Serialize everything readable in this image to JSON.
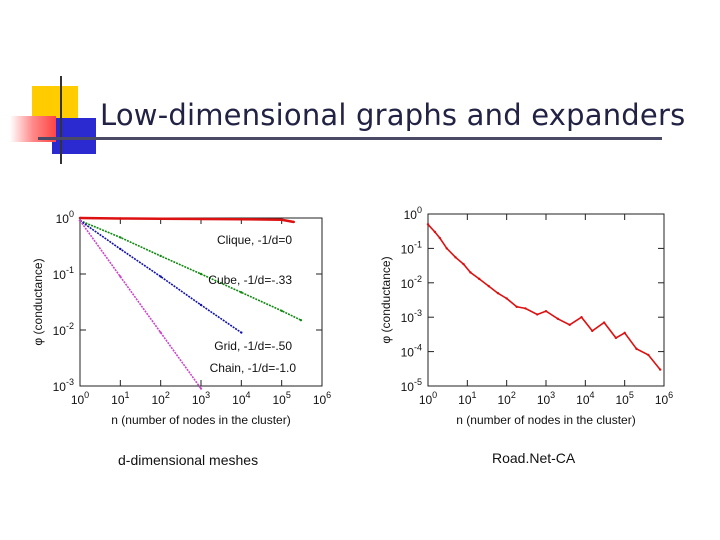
{
  "slide": {
    "title": "Low-dimensional graphs and expanders",
    "captions": {
      "left": "d-dimensional meshes",
      "right": "Road.Net-CA"
    }
  },
  "colors": {
    "accent_yellow": "#ffcc00",
    "accent_blue": "#2222cc",
    "accent_red": "#ff5555",
    "title_text": "#222244"
  },
  "chart_data": [
    {
      "type": "line",
      "xlabel": "n (number of nodes in the cluster)",
      "ylabel": "φ (conductance)",
      "xscale": "log",
      "yscale": "log",
      "xlim": [
        1,
        1000000
      ],
      "ylim": [
        0.001,
        1
      ],
      "x_ticks": [
        "10^0",
        "10^1",
        "10^2",
        "10^3",
        "10^4",
        "10^5",
        "10^6"
      ],
      "y_ticks": [
        "10^0",
        "10^-1",
        "10^-2",
        "10^-3"
      ],
      "series": [
        {
          "name": "Clique, -1/d=0",
          "color": "#dd1111",
          "x": [
            1,
            10,
            100,
            1000,
            10000,
            100000,
            200000
          ],
          "y": [
            1.0,
            0.98,
            0.97,
            0.96,
            0.95,
            0.93,
            0.85
          ]
        },
        {
          "name": "Cube, -1/d=-.33",
          "color": "#118811",
          "x": [
            1,
            10,
            100,
            1000,
            10000,
            100000,
            300000
          ],
          "y": [
            0.9,
            0.45,
            0.21,
            0.1,
            0.047,
            0.022,
            0.015
          ]
        },
        {
          "name": "Grid, -1/d=-.50",
          "color": "#1111aa",
          "x": [
            1,
            10,
            100,
            1000,
            10000
          ],
          "y": [
            0.9,
            0.28,
            0.09,
            0.028,
            0.009
          ]
        },
        {
          "name": "Chain, -1/d=-1.0",
          "color": "#cc44cc",
          "x": [
            1,
            10,
            100,
            1000
          ],
          "y": [
            0.9,
            0.09,
            0.009,
            0.0009
          ]
        }
      ],
      "legend_labels": [
        "Clique, -1/d=0",
        "Cube, -1/d=-.33",
        "Grid, -1/d=-.50",
        "Chain, -1/d=-1.0"
      ]
    },
    {
      "type": "line",
      "xlabel": "n (number of nodes in the cluster)",
      "ylabel": "φ (conductance)",
      "xscale": "log",
      "yscale": "log",
      "xlim": [
        1,
        1000000
      ],
      "ylim": [
        1e-05,
        1
      ],
      "x_ticks": [
        "10^0",
        "10^1",
        "10^2",
        "10^3",
        "10^4",
        "10^5",
        "10^6"
      ],
      "y_ticks": [
        "10^0",
        "10^-1",
        "10^-2",
        "10^-3",
        "10^-4",
        "10^-5"
      ],
      "series": [
        {
          "color": "#dd1111",
          "x": [
            1,
            1.5,
            2,
            3,
            5,
            8,
            12,
            20,
            35,
            60,
            100,
            180,
            300,
            600,
            1000,
            2000,
            4000,
            8000,
            15000,
            30000,
            60000,
            100000,
            200000,
            400000,
            800000
          ],
          "y": [
            0.5,
            0.3,
            0.2,
            0.1,
            0.055,
            0.035,
            0.02,
            0.013,
            0.008,
            0.005,
            0.0035,
            0.002,
            0.0018,
            0.0012,
            0.0015,
            0.0009,
            0.0006,
            0.001,
            0.0004,
            0.0007,
            0.00025,
            0.00035,
            0.00012,
            8e-05,
            3e-05
          ]
        }
      ]
    }
  ]
}
